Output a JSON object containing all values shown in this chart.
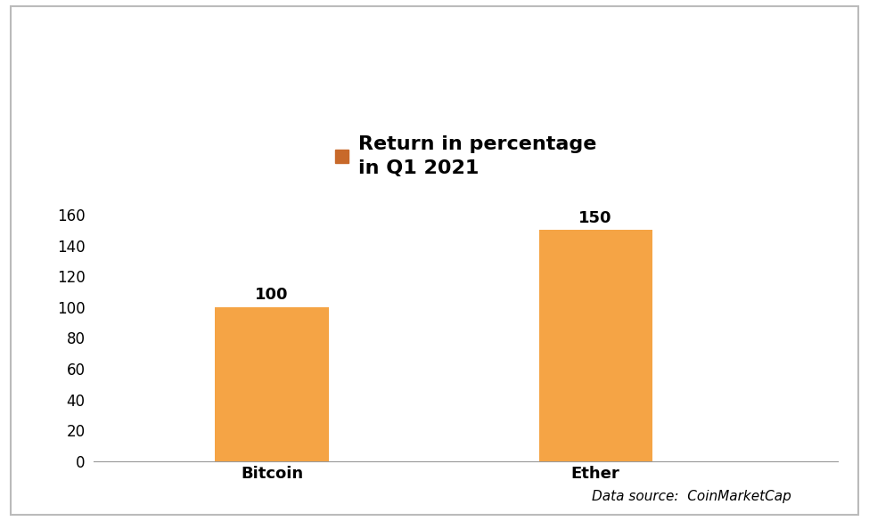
{
  "categories": [
    "Bitcoin",
    "Ether"
  ],
  "values": [
    100,
    150
  ],
  "bar_color": "#F5A445",
  "legend_color": "#C8692A",
  "title_line1": "Return in percentage",
  "title_line2": "in Q1 2021",
  "ylim": [
    0,
    170
  ],
  "yticks": [
    0,
    20,
    40,
    60,
    80,
    100,
    120,
    140,
    160
  ],
  "bar_width": 0.35,
  "value_labels": [
    "100",
    "150"
  ],
  "data_source": "Data source:  CoinMarketCap",
  "background_color": "#ffffff",
  "border_color": "#bbbbbb",
  "title_fontsize": 16,
  "tick_fontsize": 12,
  "label_fontsize": 13,
  "annotation_fontsize": 13,
  "source_fontsize": 11
}
